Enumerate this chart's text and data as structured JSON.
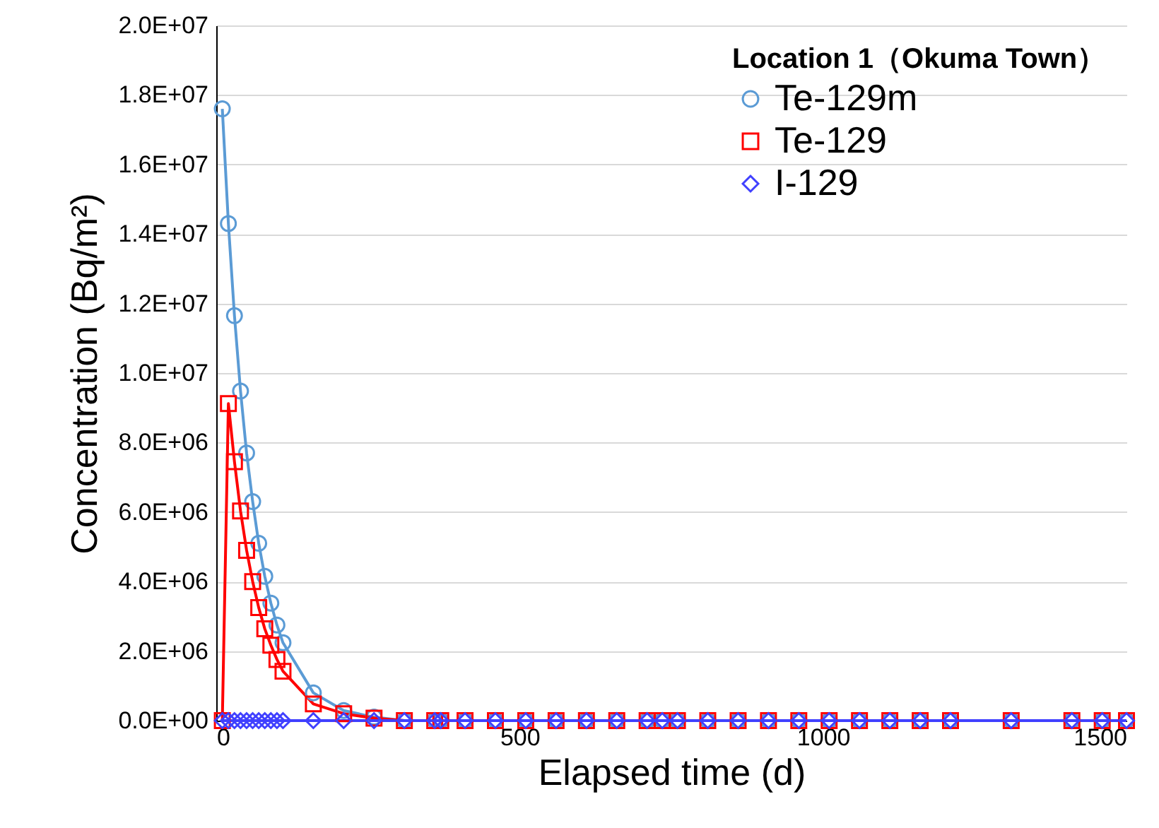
{
  "chart_data": {
    "type": "line",
    "legend_title": "Location 1（Okuma Town）",
    "xlabel": "Elapsed time (d)",
    "ylabel": "Concentration (Bq/m²)",
    "x": [
      10,
      20,
      30,
      40,
      50,
      60,
      70,
      80,
      90,
      100,
      110,
      160,
      210,
      260,
      310,
      360,
      370,
      410,
      460,
      510,
      560,
      610,
      660,
      710,
      735,
      760,
      810,
      860,
      910,
      960,
      1010,
      1060,
      1110,
      1160,
      1210,
      1310,
      1410,
      1460,
      1500
    ],
    "series": [
      {
        "name": "Te-129m",
        "color": "#5b9bd5",
        "marker": "circle",
        "values": [
          17600000,
          14300000,
          11650000,
          9480000,
          7700000,
          6300000,
          5100000,
          4150000,
          3380000,
          2750000,
          2240000,
          800000,
          290000,
          100000,
          0,
          0,
          0,
          0,
          0,
          0,
          0,
          0,
          0,
          0,
          0,
          0,
          0,
          0,
          0,
          0,
          0,
          0,
          0,
          0,
          0,
          0,
          0,
          0,
          0
        ]
      },
      {
        "name": "Te-129",
        "color": "#ff0000",
        "marker": "square",
        "values": [
          0,
          9120000,
          7450000,
          6030000,
          4900000,
          4000000,
          3250000,
          2640000,
          2170000,
          1760000,
          1420000,
          480000,
          200000,
          70000,
          0,
          0,
          0,
          0,
          0,
          0,
          0,
          0,
          0,
          0,
          0,
          0,
          0,
          0,
          0,
          0,
          0,
          0,
          0,
          0,
          0,
          0,
          0,
          0,
          0
        ]
      },
      {
        "name": "I-129",
        "color": "#4040ff",
        "marker": "diamond",
        "values": [
          0,
          0,
          0,
          0,
          0,
          0,
          0,
          0,
          0,
          0,
          0,
          0,
          0,
          0,
          0,
          0,
          0,
          0,
          0,
          0,
          0,
          0,
          0,
          0,
          0,
          0,
          0,
          0,
          0,
          0,
          0,
          0,
          0,
          0,
          0,
          0,
          0,
          0,
          0
        ]
      }
    ],
    "xlim": [
      0,
      1500
    ],
    "xticks": [
      0,
      500,
      1000,
      1500
    ],
    "ylim": [
      0,
      20000000
    ],
    "yticks": [
      {
        "value": 0,
        "label": "0.0E+00"
      },
      {
        "value": 2000000,
        "label": "2.0E+06"
      },
      {
        "value": 4000000,
        "label": "4.0E+06"
      },
      {
        "value": 6000000,
        "label": "6.0E+06"
      },
      {
        "value": 8000000,
        "label": "8.0E+06"
      },
      {
        "value": 10000000,
        "label": "1.0E+07"
      },
      {
        "value": 12000000,
        "label": "1.2E+07"
      },
      {
        "value": 14000000,
        "label": "1.4E+07"
      },
      {
        "value": 16000000,
        "label": "1.6E+07"
      },
      {
        "value": 18000000,
        "label": "1.8E+07"
      },
      {
        "value": 20000000,
        "label": "2.0E+07"
      }
    ],
    "grid": "y",
    "legend": "top right"
  }
}
